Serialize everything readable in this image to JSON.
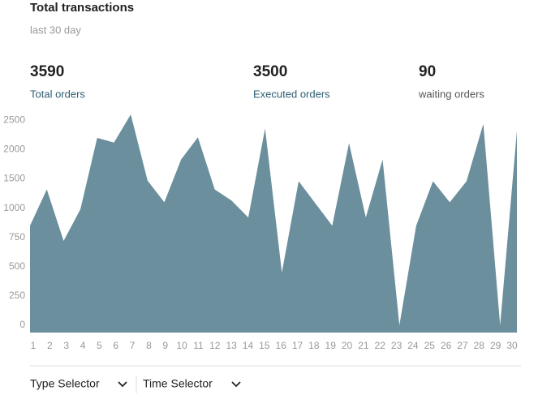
{
  "header": {
    "title": "Total transactions",
    "subtitle": "last 30 day"
  },
  "stats": [
    {
      "value": 3590,
      "label": "Total orders"
    },
    {
      "value": 3500,
      "label": "Executed orders"
    },
    {
      "value": 90,
      "label": "waiting orders"
    }
  ],
  "chart_data": {
    "type": "area",
    "categories": [
      "1",
      "2",
      "3",
      "4",
      "5",
      "6",
      "7",
      "8",
      "9",
      "10",
      "11",
      "12",
      "13",
      "14",
      "15",
      "16",
      "17",
      "18",
      "19",
      "20",
      "21",
      "22",
      "23",
      "24",
      "25",
      "26",
      "27",
      "28",
      "29",
      "30"
    ],
    "values": [
      850,
      1320,
      720,
      990,
      2200,
      2120,
      2600,
      1470,
      1100,
      1830,
      2210,
      1320,
      1130,
      920,
      2360,
      450,
      1460,
      1080,
      850,
      2110,
      920,
      1830,
      0,
      850,
      1460,
      1100,
      1460,
      2440,
      0,
      2320
    ],
    "color": "#6b8f9c",
    "yticks": [
      0,
      250,
      500,
      750,
      1000,
      1500,
      2000,
      2500
    ]
  },
  "controls": [
    "Type Selector",
    "Time Selector"
  ]
}
